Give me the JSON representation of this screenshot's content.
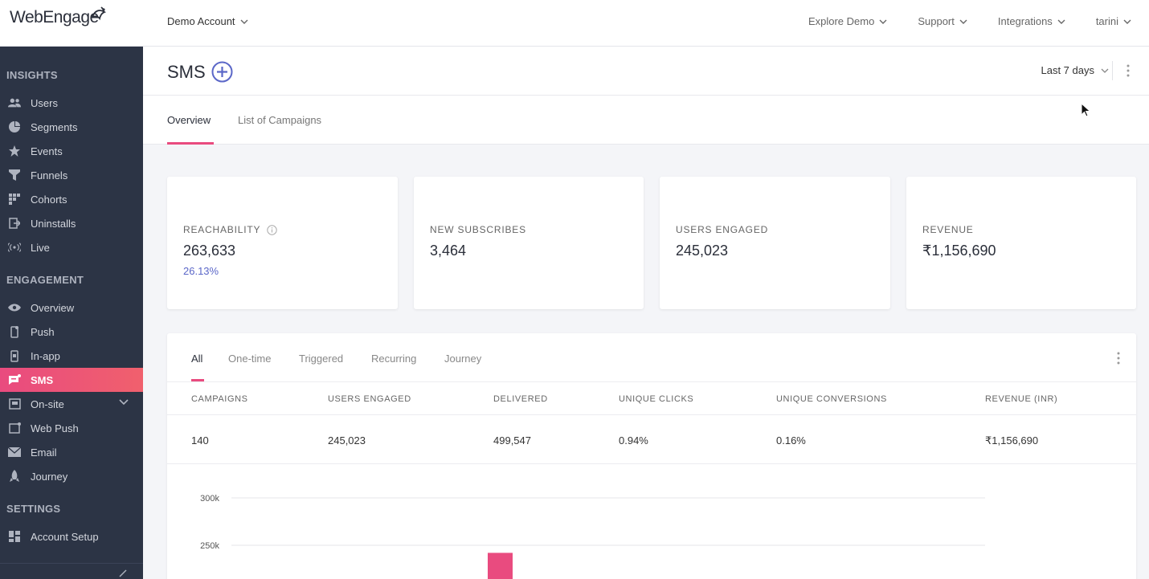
{
  "brand": {
    "logo_text": "WebEngage",
    "accent": "#e94b7f"
  },
  "topbar": {
    "account": "Demo Account",
    "nav": [
      "Explore Demo",
      "Support",
      "Integrations",
      "tarini"
    ]
  },
  "sidebar": {
    "sections": {
      "insights": "INSIGHTS",
      "engagement": "ENGAGEMENT",
      "settings": "SETTINGS"
    },
    "insights_items": [
      {
        "label": "Users",
        "icon": "users-icon"
      },
      {
        "label": "Segments",
        "icon": "pie-icon"
      },
      {
        "label": "Events",
        "icon": "star-icon"
      },
      {
        "label": "Funnels",
        "icon": "funnel-icon"
      },
      {
        "label": "Cohorts",
        "icon": "grid-icon"
      },
      {
        "label": "Uninstalls",
        "icon": "exit-icon"
      },
      {
        "label": "Live",
        "icon": "broadcast-icon"
      }
    ],
    "engagement_items": [
      {
        "label": "Overview",
        "icon": "eye-icon"
      },
      {
        "label": "Push",
        "icon": "mobile-icon"
      },
      {
        "label": "In-app",
        "icon": "tablet-icon"
      },
      {
        "label": "SMS",
        "icon": "sms-icon"
      },
      {
        "label": "On-site",
        "icon": "window-icon"
      },
      {
        "label": "Web Push",
        "icon": "browser-icon"
      },
      {
        "label": "Email",
        "icon": "mail-icon"
      },
      {
        "label": "Journey",
        "icon": "rocket-icon"
      }
    ],
    "settings_items": [
      {
        "label": "Account Setup",
        "icon": "dashboard-icon"
      }
    ]
  },
  "page": {
    "title": "SMS",
    "date_range": "Last 7 days",
    "tabs": [
      "Overview",
      "List of Campaigns"
    ]
  },
  "cards": [
    {
      "label": "REACHABILITY",
      "value": "263,633",
      "sub": "26.13%"
    },
    {
      "label": "NEW SUBSCRIBES",
      "value": "3,464"
    },
    {
      "label": "USERS ENGAGED",
      "value": "245,023"
    },
    {
      "label": "REVENUE",
      "value": "₹1,156,690"
    }
  ],
  "panel": {
    "tabs": [
      "All",
      "One-time",
      "Triggered",
      "Recurring",
      "Journey"
    ],
    "headers": [
      "CAMPAIGNS",
      "USERS ENGAGED",
      "DELIVERED",
      "UNIQUE CLICKS",
      "UNIQUE CONVERSIONS",
      "REVENUE (INR)"
    ],
    "values": [
      "140",
      "245,023",
      "499,547",
      "0.94%",
      "0.16%",
      "₹1,156,690"
    ]
  },
  "chart_data": {
    "type": "bar",
    "y_ticks": [
      "300k",
      "250k"
    ],
    "ylim": [
      200000,
      300000
    ],
    "bars": [
      {
        "value": 242000,
        "color": "#e94b7f"
      }
    ]
  }
}
